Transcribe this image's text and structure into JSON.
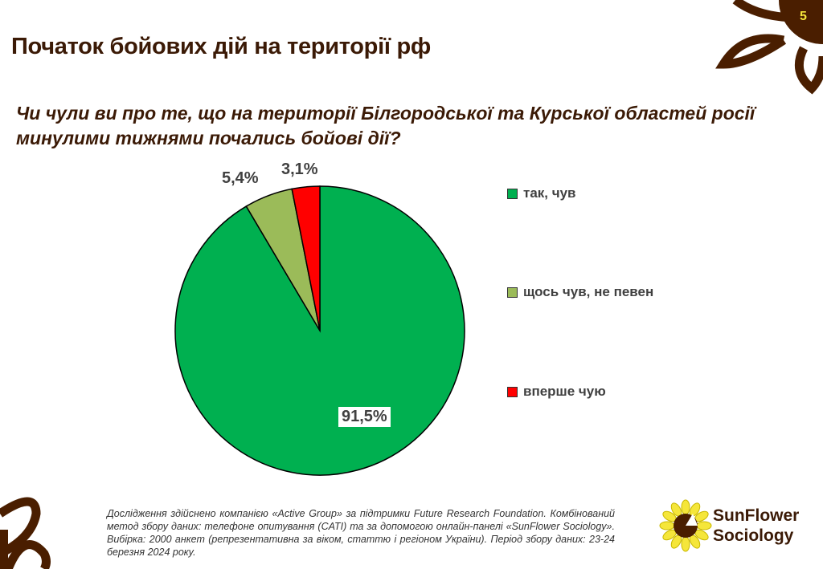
{
  "page_number": "5",
  "title": "Початок бойових дій на території рф",
  "question": "Чи чули ви про те, що на території Білгородської та Курської областей росії минулими тижнями почались бойові дії?",
  "chart_data": {
    "type": "pie",
    "categories": [
      "так, чув",
      "щось чув, не певен",
      "вперше чую"
    ],
    "values": [
      91.5,
      5.4,
      3.1
    ],
    "data_labels": [
      "91,5%",
      "5,4%",
      "3,1%"
    ],
    "colors": [
      "#00b050",
      "#9bbb59",
      "#ff0000"
    ],
    "legend_position": "right",
    "start_angle": "12 o'clock, clockwise"
  },
  "footnote": "Дослідження здійснено компанією «Active Group» за підтримки Future Research Foundation. Комбінований метод збору даних: телефоне опитування (CATI) та за допомогою онлайн-панелі «SunFlower Sociology». Вибірка: 2000 анкет (репрезентативна за віком, статтю і регіоном України). Період збору даних: 23-24 березня 2024 року.",
  "logo": {
    "line1": "SunFlower",
    "line2": "Sociology"
  },
  "colors": {
    "brand_brown": "#4a1e00",
    "brand_yellow": "#f5e63a"
  }
}
